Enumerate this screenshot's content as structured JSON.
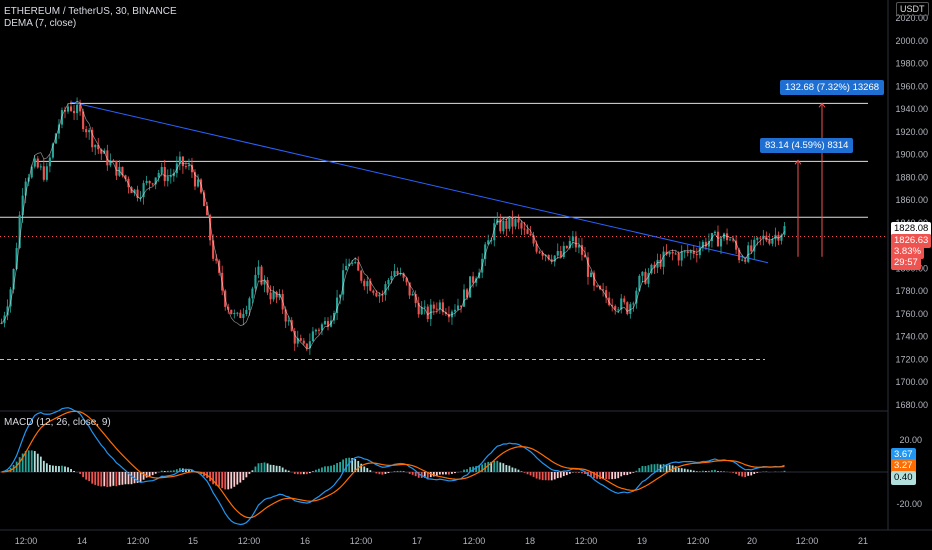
{
  "header": {
    "symbol_line": "ETHEREUM / TetherUS, 30, BINANCE",
    "indicator": "DEMA (7, close)",
    "macd_label": "MACD (12, 26, close, 9)"
  },
  "price_axis": {
    "currency_button": "USDT",
    "ticks": [
      "2020.00",
      "2000.00",
      "1980.00",
      "1960.00",
      "1940.00",
      "1920.00",
      "1900.00",
      "1880.00",
      "1860.00",
      "1840.00",
      "1800.00",
      "1780.00",
      "1760.00",
      "1740.00",
      "1720.00",
      "1700.00",
      "1680.00"
    ],
    "tick_values": [
      2020,
      2000,
      1980,
      1960,
      1940,
      1920,
      1900,
      1880,
      1860,
      1840,
      1800,
      1780,
      1760,
      1740,
      1720,
      1700,
      1680
    ],
    "current_price": "1828.08",
    "dema_value": "1826.63",
    "change_pct": "3.83%",
    "countdown": "29:57"
  },
  "macd_axis": {
    "ticks": [
      "20.00",
      "-20.00"
    ],
    "tick_values": [
      20,
      -20
    ],
    "macd_value": "3.67",
    "signal_value": "3.27",
    "hist_value": "0.40"
  },
  "time_axis": {
    "labels": [
      "12:00",
      "14",
      "12:00",
      "15",
      "12:00",
      "16",
      "12:00",
      "17",
      "12:00",
      "18",
      "12:00",
      "19",
      "12:00",
      "20",
      "12:00",
      "21"
    ]
  },
  "measurements": [
    {
      "text": "132.68 (7.32%) 13268"
    },
    {
      "text": "83.14 (4.59%) 8314"
    }
  ],
  "colors": {
    "up": "#26a69a",
    "down": "#ef5350",
    "trendline": "#2962ff",
    "macd_line": "#2196f3",
    "signal_line": "#ff6d00",
    "dema": "#ffffff"
  },
  "chart_data": {
    "type": "candlestick",
    "symbol": "ETHEREUM / TetherUS",
    "interval": "30",
    "exchange": "BINANCE",
    "price_range": [
      1670,
      2025
    ],
    "horizontal_levels": [
      1945,
      1894,
      1845,
      1720
    ],
    "trendline": {
      "from": 1946,
      "to": 1805
    },
    "measure_tools": [
      {
        "from": 1812,
        "to": 1945,
        "label": "132.68 (7.32%) 13268"
      },
      {
        "from": 1812,
        "to": 1895,
        "label": "83.14 (4.59%) 8314"
      }
    ],
    "price_path": [
      1752,
      1790,
      1880,
      1890,
      1882,
      1925,
      1944,
      1935,
      1915,
      1900,
      1890,
      1880,
      1866,
      1874,
      1885,
      1880,
      1892,
      1886,
      1860,
      1808,
      1772,
      1754,
      1772,
      1796,
      1778,
      1770,
      1742,
      1728,
      1746,
      1752,
      1772,
      1808,
      1794,
      1786,
      1776,
      1800,
      1788,
      1770,
      1758,
      1770,
      1764,
      1770,
      1788,
      1808,
      1836,
      1838,
      1840,
      1828,
      1818,
      1812,
      1810,
      1825,
      1812,
      1780,
      1775,
      1770,
      1765,
      1788,
      1796,
      1808,
      1812,
      1812,
      1816,
      1824,
      1826,
      1828,
      1810,
      1815,
      1826,
      1828,
      1835
    ]
  }
}
